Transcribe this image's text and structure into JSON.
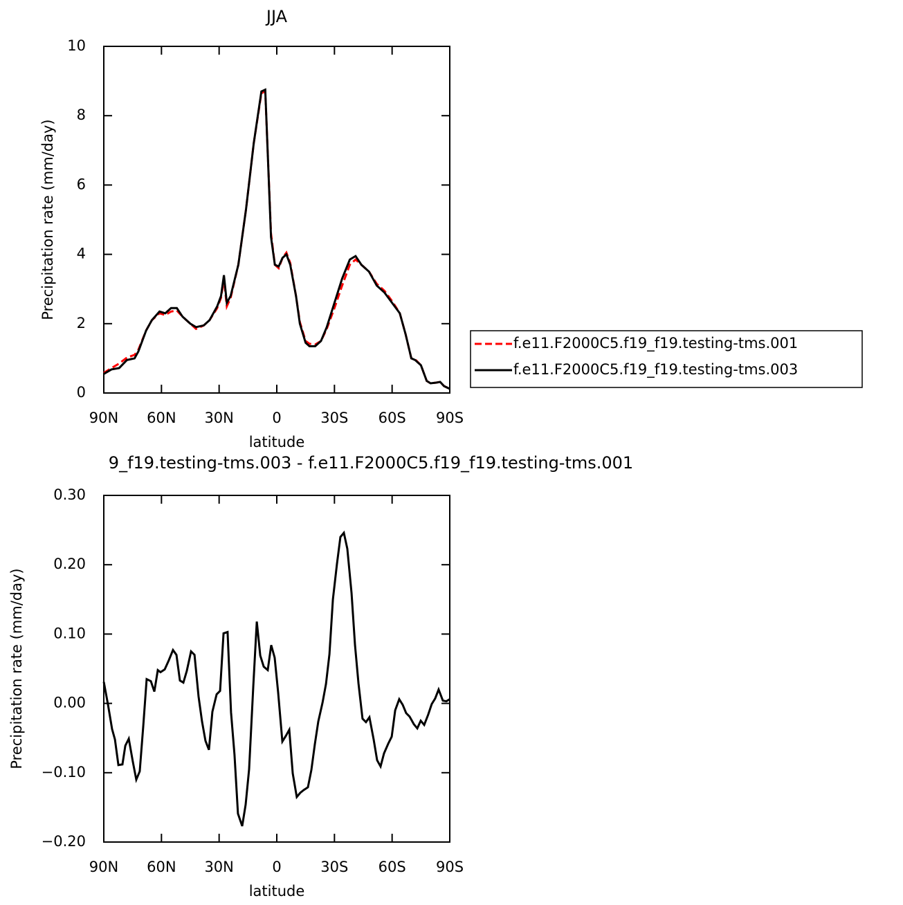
{
  "chart_data": [
    {
      "type": "line",
      "title": "JJA",
      "xlabel": "latitude",
      "ylabel": "Precipitation rate (mm/day)",
      "x": [
        90,
        86,
        82,
        78,
        74,
        72,
        68,
        65,
        61,
        58,
        55,
        52,
        49,
        45,
        42,
        38,
        35,
        31,
        29,
        27.5,
        26,
        24,
        20,
        16,
        12,
        8,
        6,
        3,
        1,
        -1,
        -3,
        -5,
        -7,
        -10,
        -12,
        -15,
        -17,
        -20,
        -23,
        -26,
        -30,
        -34,
        -38,
        -41,
        -44,
        -48,
        -52,
        -56,
        -60,
        -64,
        -67,
        -70,
        -72,
        -75,
        -78,
        -80,
        -83,
        -85,
        -87,
        -90
      ],
      "series": [
        {
          "name": "f.e11.F2000C5.f19_f19.testing-tms.001",
          "color": "#ff0000",
          "style": "dashed",
          "values": [
            0.58,
            0.72,
            0.85,
            1.02,
            1.1,
            1.25,
            1.8,
            2.1,
            2.3,
            2.25,
            2.35,
            2.38,
            2.2,
            2.0,
            1.85,
            1.95,
            2.1,
            2.45,
            2.75,
            3.3,
            2.5,
            2.75,
            3.7,
            5.3,
            7.2,
            8.65,
            8.7,
            4.6,
            3.7,
            3.6,
            3.9,
            4.05,
            3.75,
            2.8,
            2.05,
            1.5,
            1.42,
            1.4,
            1.5,
            1.85,
            2.45,
            3.1,
            3.7,
            3.85,
            3.7,
            3.5,
            3.15,
            2.95,
            2.65,
            2.3,
            1.7,
            1.0,
            0.97,
            0.8,
            0.35,
            0.28,
            0.3,
            0.32,
            0.2,
            0.12
          ]
        },
        {
          "name": "f.e11.F2000C5.f19_f19.testing-tms.003",
          "color": "#000000",
          "style": "solid",
          "values": [
            0.55,
            0.68,
            0.72,
            0.95,
            1.0,
            1.2,
            1.8,
            2.1,
            2.35,
            2.3,
            2.45,
            2.45,
            2.2,
            2.0,
            1.9,
            1.95,
            2.1,
            2.5,
            2.8,
            3.4,
            2.6,
            2.8,
            3.7,
            5.3,
            7.2,
            8.7,
            8.75,
            4.5,
            3.7,
            3.65,
            3.9,
            4.0,
            3.7,
            2.8,
            2.0,
            1.45,
            1.35,
            1.35,
            1.5,
            1.9,
            2.6,
            3.3,
            3.85,
            3.95,
            3.7,
            3.5,
            3.1,
            2.9,
            2.6,
            2.3,
            1.7,
            1.0,
            0.95,
            0.8,
            0.35,
            0.28,
            0.3,
            0.32,
            0.2,
            0.12
          ]
        }
      ],
      "xlim": [
        90,
        -90
      ],
      "xticks": [
        {
          "value": 90,
          "label": "90N"
        },
        {
          "value": 60,
          "label": "60N"
        },
        {
          "value": 30,
          "label": "30N"
        },
        0,
        {
          "value": -30,
          "label": "30S"
        },
        {
          "value": -60,
          "label": "60S"
        },
        {
          "value": -90,
          "label": "90S"
        }
      ],
      "ylim": [
        0,
        10
      ],
      "yticks": [
        0,
        2,
        4,
        6,
        8,
        10
      ],
      "legend": "right"
    },
    {
      "type": "line",
      "title": "9_f19.testing-tms.003 - f.e11.F2000C5.f19_f19.testing-tms.001",
      "xlabel": "latitude",
      "ylabel": "Precipitation rate (mm/day)",
      "x": [
        90,
        87.8,
        85.7,
        84.2,
        82.4,
        80.3,
        78.8,
        77,
        74.9,
        73.1,
        71.3,
        69.5,
        67.7,
        65.5,
        63.7,
        61.9,
        60.5,
        58.3,
        56.2,
        54,
        52.2,
        50.4,
        48.6,
        46.8,
        44.6,
        42.8,
        40.7,
        38.9,
        37.1,
        35.3,
        33.5,
        31.3,
        29.5,
        27.7,
        25.6,
        23.8,
        22,
        20.2,
        18,
        16.2,
        14.4,
        12.2,
        10.4,
        8.6,
        6.8,
        4.7,
        2.9,
        1.1,
        -0.7,
        -2.9,
        -4.7,
        -6.5,
        -8.3,
        -10.4,
        -12.2,
        -14,
        -16.2,
        -18,
        -19.8,
        -21.6,
        -23.8,
        -25.6,
        -27.4,
        -29.2,
        -31.3,
        -33.1,
        -34.9,
        -36.7,
        -38.9,
        -40.7,
        -42.5,
        -44.6,
        -46.4,
        -48.2,
        -50.4,
        -52.2,
        -54,
        -55.8,
        -58,
        -59.8,
        -61.6,
        -63.7,
        -65.5,
        -67.3,
        -69.1,
        -71.3,
        -73.1,
        -74.9,
        -76.7,
        -78.8,
        -80.6,
        -82.4,
        -84.2,
        -86.4,
        -88.2,
        -90
      ],
      "series": [
        {
          "color": "#000000",
          "style": "solid",
          "values": [
            0.031,
            -0.002,
            -0.037,
            -0.052,
            -0.089,
            -0.088,
            -0.061,
            -0.051,
            -0.084,
            -0.11,
            -0.098,
            -0.034,
            0.035,
            0.032,
            0.017,
            0.048,
            0.045,
            0.049,
            0.062,
            0.077,
            0.07,
            0.033,
            0.03,
            0.047,
            0.075,
            0.07,
            0.01,
            -0.026,
            -0.054,
            -0.067,
            -0.012,
            0.013,
            0.018,
            0.101,
            0.103,
            -0.013,
            -0.074,
            -0.159,
            -0.177,
            -0.146,
            -0.095,
            0.026,
            0.118,
            0.069,
            0.053,
            0.048,
            0.084,
            0.066,
            0.016,
            -0.055,
            -0.047,
            -0.038,
            -0.101,
            -0.135,
            -0.129,
            -0.125,
            -0.121,
            -0.096,
            -0.059,
            -0.026,
            0.001,
            0.028,
            0.071,
            0.15,
            0.201,
            0.24,
            0.246,
            0.223,
            0.159,
            0.084,
            0.029,
            -0.022,
            -0.027,
            -0.02,
            -0.052,
            -0.082,
            -0.091,
            -0.072,
            -0.058,
            -0.048,
            -0.01,
            0.006,
            -0.002,
            -0.014,
            -0.019,
            -0.03,
            -0.036,
            -0.025,
            -0.031,
            -0.016,
            -0.001,
            0.007,
            0.02,
            0.004,
            0.003,
            0.006
          ]
        }
      ],
      "xlim": [
        90,
        -90
      ],
      "xticks": [
        {
          "value": 90,
          "label": "90N"
        },
        {
          "value": 60,
          "label": "60N"
        },
        {
          "value": 30,
          "label": "30N"
        },
        0,
        {
          "value": -30,
          "label": "30S"
        },
        {
          "value": -60,
          "label": "60S"
        },
        {
          "value": -90,
          "label": "90S"
        }
      ],
      "ylim": [
        -0.2,
        0.3
      ],
      "yticks": [
        {
          "value": -0.2,
          "label": "−0.20"
        },
        {
          "value": -0.1,
          "label": "−0.10"
        },
        {
          "value": 0,
          "label": "0.00"
        },
        {
          "value": 0.1,
          "label": "0.10"
        },
        {
          "value": 0.2,
          "label": "0.20"
        },
        {
          "value": 0.3,
          "label": "0.30"
        }
      ]
    }
  ]
}
